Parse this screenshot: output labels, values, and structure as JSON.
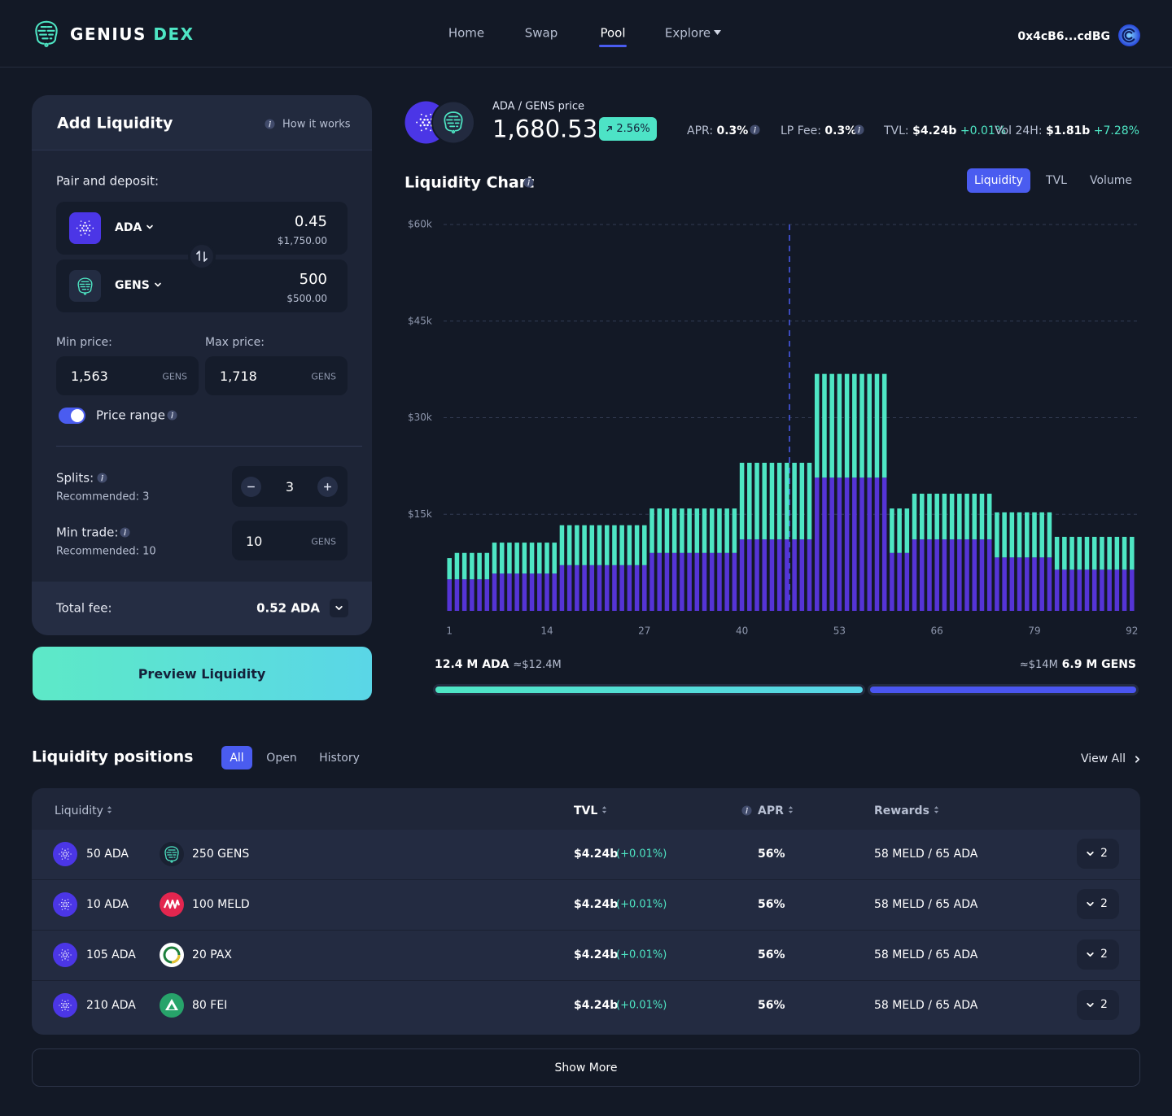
{
  "header": {
    "logo": {
      "name": "GENIUS",
      "accent": "DEX"
    },
    "nav": [
      "Home",
      "Swap",
      "Pool",
      "Explore"
    ],
    "wallet": "0x4cB6...cdBG"
  },
  "add_liquidity": {
    "title": "Add Liquidity",
    "help": "How it works",
    "pair_label": "Pair and deposit:",
    "tokens": [
      {
        "symbol": "ADA",
        "amount": "0.45",
        "usd": "$1,750.00"
      },
      {
        "symbol": "GENS",
        "amount": "500",
        "usd": "$500.00"
      }
    ],
    "min_price": {
      "label": "Min price:",
      "value": "1,563",
      "unit": "GENS"
    },
    "max_price": {
      "label": "Max price:",
      "value": "1,718",
      "unit": "GENS"
    },
    "price_range": "Price range",
    "splits": {
      "label": "Splits:",
      "hint": "Recommended: 3",
      "value": "3"
    },
    "min_trade": {
      "label": "Min trade:",
      "hint": "Recommended: 10",
      "value": "10",
      "unit": "GENS"
    },
    "total_fee": {
      "label": "Total fee:",
      "value": "0.52 ADA"
    },
    "button": "Preview Liquidity"
  },
  "pool_stats": {
    "pair": "ADA / GENS price",
    "price": "1,680.53",
    "change": "2.56%",
    "apr": {
      "label": "APR:",
      "value": "0.3%"
    },
    "lp_fee": {
      "label": "LP Fee:",
      "value": "0.3%"
    },
    "tvl": {
      "label": "TVL:",
      "value": "$4.24b",
      "change": "+0.01%"
    },
    "volume": {
      "label": "Vol 24H:",
      "value": "$1.81b",
      "change": "+7.28%"
    }
  },
  "chart_data": {
    "type": "bar",
    "stacked": true,
    "title": "Liquidity Chart",
    "tabs": [
      "Liquidity",
      "TVL",
      "Volume"
    ],
    "x": [
      1,
      2,
      3,
      4,
      5,
      6,
      7,
      8,
      9,
      10,
      11,
      12,
      13,
      14,
      15,
      16,
      17,
      18,
      19,
      20,
      21,
      22,
      23,
      24,
      25,
      26,
      27,
      28,
      29,
      30,
      31,
      32,
      33,
      34,
      35,
      36,
      37,
      38,
      39,
      40,
      41,
      42,
      43,
      44,
      45,
      46,
      47,
      48,
      49,
      50,
      51,
      52,
      53,
      54,
      55,
      56,
      57,
      58,
      59,
      60,
      61,
      62,
      63,
      64,
      65,
      66,
      67,
      68,
      69,
      70,
      71,
      72,
      73,
      74,
      75,
      76,
      77,
      78,
      79,
      80,
      81,
      82,
      83,
      84,
      85,
      86,
      87,
      88,
      89,
      90,
      91,
      92
    ],
    "xlim": [
      0,
      93
    ],
    "xticks": [
      1,
      14,
      27,
      40,
      53,
      66,
      79,
      92
    ],
    "ylim": [
      0,
      60000
    ],
    "yticks": [
      {
        "value": 15000,
        "label": "$15k"
      },
      {
        "value": 30000,
        "label": "$30k"
      },
      {
        "value": 45000,
        "label": "$45k"
      },
      {
        "value": 60000,
        "label": "$60k"
      }
    ],
    "grid": true,
    "series": [
      {
        "color": "#5534d6",
        "values": [
          4900,
          4900,
          4900,
          4900,
          4900,
          4900,
          5800,
          5800,
          5800,
          5800,
          5800,
          5800,
          5800,
          5800,
          5800,
          7100,
          7100,
          7100,
          7100,
          7100,
          7100,
          7100,
          7100,
          7100,
          7100,
          7100,
          7100,
          9000,
          9000,
          9000,
          9000,
          9000,
          9000,
          9000,
          9000,
          9000,
          9000,
          9000,
          9000,
          11100,
          11100,
          11100,
          11100,
          11100,
          11100,
          11100,
          11100,
          11100,
          11100,
          20700,
          20700,
          20700,
          20700,
          20700,
          20700,
          20700,
          20700,
          20700,
          20700,
          9000,
          9000,
          9000,
          11100,
          11100,
          11100,
          11100,
          11100,
          11100,
          11100,
          11100,
          11100,
          11100,
          11100,
          8300,
          8300,
          8300,
          8300,
          8300,
          8300,
          8300,
          8300,
          6400,
          6400,
          6400,
          6400,
          6400,
          6400,
          6400,
          6400,
          6400,
          6400,
          6400
        ]
      },
      {
        "color": "#4ee6c4",
        "values": [
          3300,
          4100,
          4100,
          4100,
          4100,
          4100,
          4800,
          4800,
          4800,
          4800,
          4800,
          4800,
          4800,
          4800,
          4800,
          6200,
          6200,
          6200,
          6200,
          6200,
          6200,
          6200,
          6200,
          6200,
          6200,
          6200,
          6200,
          6900,
          6900,
          6900,
          6900,
          6900,
          6900,
          6900,
          6900,
          6900,
          6900,
          6900,
          6900,
          11900,
          11900,
          11900,
          11900,
          11900,
          11900,
          11900,
          11900,
          11900,
          11900,
          16100,
          16100,
          16100,
          16100,
          16100,
          16100,
          16100,
          16100,
          16100,
          16100,
          6900,
          6900,
          6900,
          7100,
          7100,
          7100,
          7100,
          7100,
          7100,
          7100,
          7100,
          7100,
          7100,
          7100,
          7000,
          7000,
          7000,
          7000,
          7000,
          7000,
          7000,
          7000,
          5100,
          5100,
          5100,
          5100,
          5100,
          5100,
          5100,
          5100,
          5100,
          5100,
          5100
        ]
      }
    ]
  },
  "reserves": {
    "left": {
      "amount": "12.4 M ADA",
      "usd": "≈$12.4M"
    },
    "right": {
      "usd": "≈$14M",
      "amount": "6.9 M GENS"
    }
  },
  "positions": {
    "title": "Liquidity positions",
    "tabs": [
      "All",
      "Open",
      "History"
    ],
    "view_all": "View All",
    "columns": [
      "Liquidity",
      "TVL",
      "APR",
      "Rewards"
    ],
    "rows": [
      {
        "token_a": "50 ADA",
        "token_b": "250 GENS",
        "tvl": "$4.24b",
        "tvl_change": "(+0.01%)",
        "apr": "56%",
        "rewards": "58 MELD / 65 ADA",
        "count": "2"
      },
      {
        "token_a": "10 ADA",
        "token_b": "100 MELD",
        "tvl": "$4.24b",
        "tvl_change": "(+0.01%)",
        "apr": "56%",
        "rewards": "58 MELD / 65 ADA",
        "count": "2"
      },
      {
        "token_a": "105 ADA",
        "token_b": "20 PAX",
        "tvl": "$4.24b",
        "tvl_change": "(+0.01%)",
        "apr": "56%",
        "rewards": "58 MELD / 65 ADA",
        "count": "2"
      },
      {
        "token_a": "210 ADA",
        "token_b": "80 FEI",
        "tvl": "$4.24b",
        "tvl_change": "(+0.01%)",
        "apr": "56%",
        "rewards": "58 MELD / 65 ADA",
        "count": "2"
      }
    ],
    "show_more": "Show More"
  }
}
